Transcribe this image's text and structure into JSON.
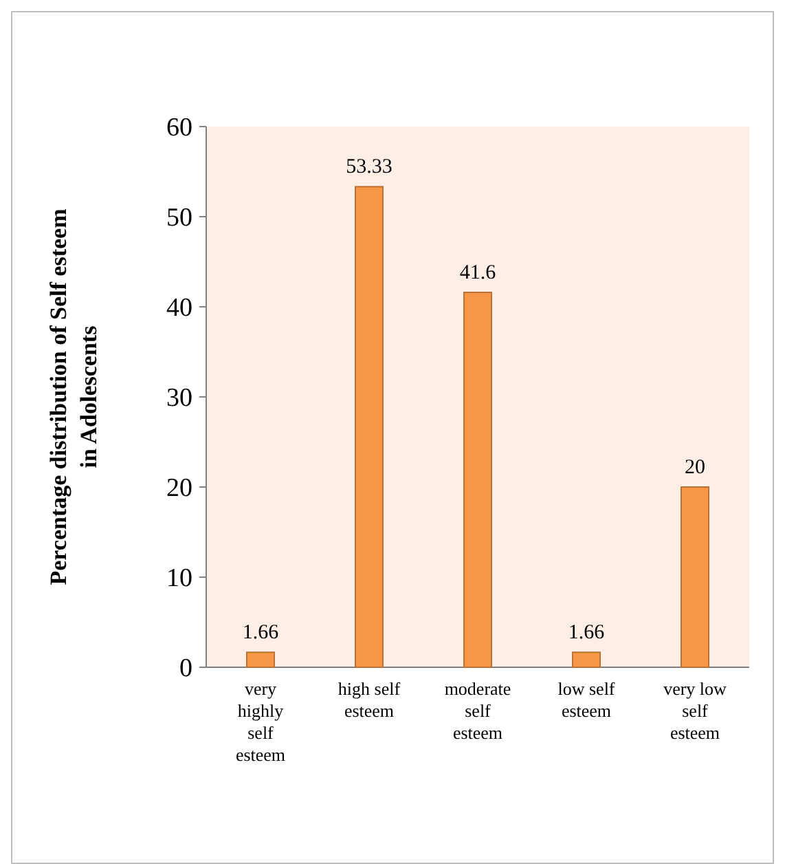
{
  "chart_data": {
    "type": "bar",
    "ylabel": "Percentage  distribution of Self esteem in Adolescents",
    "categories": [
      "very highly self esteem",
      "high self esteem",
      "moderate self esteem",
      "low self esteem",
      "very low self esteem"
    ],
    "values": [
      1.66,
      53.33,
      41.6,
      1.66,
      20
    ],
    "color": "#f79646",
    "ylim": [
      0,
      60
    ],
    "yticks": [
      0,
      10,
      20,
      30,
      40,
      50,
      60
    ],
    "grid": false,
    "data_labels": true
  }
}
